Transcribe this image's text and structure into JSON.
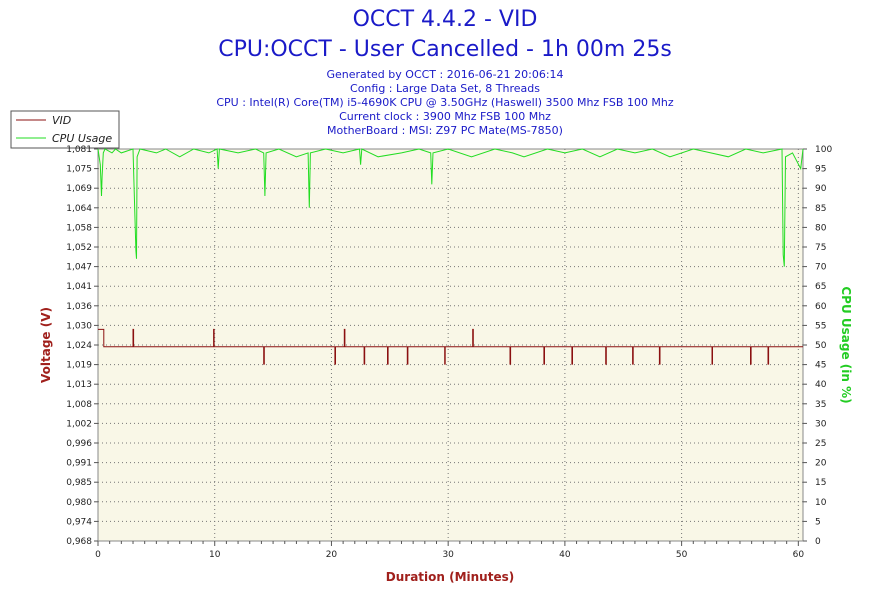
{
  "chart_data": {
    "type": "line",
    "title": "OCCT 4.4.2 - VID",
    "subtitle": "CPU:OCCT - User Cancelled - 1h 00m 25s",
    "info_lines": [
      "Generated by OCCT : 2016-06-21 20:06:14",
      "Config : Large Data Set, 8 Threads",
      "CPU : Intel(R) Core(TM) i5-4690K CPU @ 3.50GHz (Haswell) 3500 Mhz FSB 100 Mhz",
      "Current clock : 3900 Mhz FSB 100 Mhz",
      "MotherBoard : MSI: Z97 PC Mate(MS-7850)"
    ],
    "xlabel": "Duration (Minutes)",
    "ylabel": "Voltage (V)",
    "y2label": "CPU Usage (in %)",
    "xlim": [
      0,
      60.4
    ],
    "ylim": [
      0.968,
      1.081
    ],
    "y2lim": [
      0,
      100
    ],
    "x_ticks": [
      "0",
      "10",
      "20",
      "30",
      "40",
      "50",
      "60"
    ],
    "y_ticks": [
      "0,968",
      "0,974",
      "0,980",
      "0,985",
      "0,991",
      "0,996",
      "1,002",
      "1,008",
      "1,013",
      "1,019",
      "1,024",
      "1,030",
      "1,036",
      "1,041",
      "1,047",
      "1,052",
      "1,058",
      "1,064",
      "1,069",
      "1,075",
      "1,081"
    ],
    "y2_ticks": [
      "0",
      "5",
      "10",
      "15",
      "20",
      "25",
      "30",
      "35",
      "40",
      "45",
      "50",
      "55",
      "60",
      "65",
      "70",
      "75",
      "80",
      "85",
      "90",
      "95",
      "100"
    ],
    "grid": true,
    "legend_position": "top-left",
    "series": [
      {
        "name": "VID",
        "color": "#8b1010",
        "axis": "left",
        "baseline": 1.024,
        "x": [
          0,
          0.5,
          0.5,
          0.55,
          0.55,
          3.0,
          3.0,
          3.05,
          3.05,
          9.9,
          9.9,
          9.95,
          9.95,
          14.2,
          14.2,
          14.25,
          14.25,
          20.3,
          20.3,
          20.35,
          20.35,
          21.1,
          21.1,
          21.15,
          21.15,
          22.8,
          22.8,
          22.85,
          22.85,
          24.8,
          24.8,
          24.85,
          24.85,
          26.5,
          26.5,
          26.55,
          26.55,
          29.7,
          29.7,
          29.75,
          29.75,
          32.1,
          32.1,
          32.15,
          32.15,
          35.3,
          35.3,
          35.35,
          35.35,
          38.2,
          38.2,
          38.25,
          38.25,
          40.6,
          40.6,
          40.65,
          40.65,
          43.5,
          43.5,
          43.55,
          43.55,
          45.8,
          45.8,
          45.85,
          45.85,
          48.1,
          48.1,
          48.15,
          48.15,
          52.6,
          52.6,
          52.65,
          52.65,
          55.9,
          55.9,
          55.95,
          55.95,
          57.4,
          57.4,
          57.45,
          57.45,
          60.4
        ],
        "y": [
          1.029,
          1.029,
          1.024,
          1.024,
          1.024,
          1.024,
          1.029,
          1.029,
          1.024,
          1.024,
          1.029,
          1.029,
          1.024,
          1.024,
          1.019,
          1.019,
          1.024,
          1.024,
          1.019,
          1.019,
          1.024,
          1.024,
          1.029,
          1.029,
          1.024,
          1.024,
          1.019,
          1.019,
          1.024,
          1.024,
          1.019,
          1.019,
          1.024,
          1.024,
          1.019,
          1.019,
          1.024,
          1.024,
          1.019,
          1.019,
          1.024,
          1.024,
          1.029,
          1.029,
          1.024,
          1.024,
          1.019,
          1.019,
          1.024,
          1.024,
          1.019,
          1.019,
          1.024,
          1.024,
          1.019,
          1.019,
          1.024,
          1.024,
          1.019,
          1.019,
          1.024,
          1.024,
          1.019,
          1.019,
          1.024,
          1.024,
          1.019,
          1.019,
          1.024,
          1.024,
          1.019,
          1.019,
          1.024,
          1.024,
          1.019,
          1.019,
          1.024,
          1.024,
          1.019,
          1.019,
          1.024,
          1.024
        ]
      },
      {
        "name": "CPU Usage",
        "color": "#22dd22",
        "axis": "right",
        "x": [
          0,
          0.2,
          0.3,
          0.35,
          0.45,
          0.6,
          1.2,
          1.5,
          2.0,
          3.0,
          3.25,
          3.3,
          3.35,
          3.6,
          5.0,
          5.8,
          7.0,
          8.2,
          9.5,
          10.2,
          10.3,
          10.4,
          12.0,
          13.5,
          14.2,
          14.3,
          14.4,
          15.5,
          17.0,
          18.0,
          18.1,
          18.2,
          19.5,
          21.0,
          22.4,
          22.5,
          22.6,
          24.0,
          26.0,
          27.5,
          28.5,
          28.6,
          28.7,
          30.0,
          32.0,
          34.0,
          35.5,
          36.5,
          38.5,
          40.0,
          41.5,
          43.0,
          44.5,
          46.0,
          47.5,
          49.0,
          51.0,
          52.5,
          54.0,
          55.5,
          57.0,
          58.6,
          58.7,
          58.8,
          58.9,
          59.5,
          60.2,
          60.4
        ],
        "y": [
          100,
          96,
          88,
          93,
          99,
          100,
          99,
          100,
          99,
          100,
          74,
          72,
          98,
          100,
          99,
          100,
          98,
          100,
          99,
          100,
          95,
          100,
          99,
          100,
          99,
          88,
          99,
          100,
          98,
          99,
          85,
          99,
          100,
          99,
          100,
          96,
          100,
          98,
          99,
          100,
          99,
          91,
          99,
          100,
          98,
          100,
          99,
          98,
          100,
          99,
          100,
          98,
          100,
          99,
          100,
          98,
          100,
          99,
          98,
          100,
          99,
          100,
          73,
          70,
          98,
          99,
          95,
          100
        ]
      }
    ]
  }
}
